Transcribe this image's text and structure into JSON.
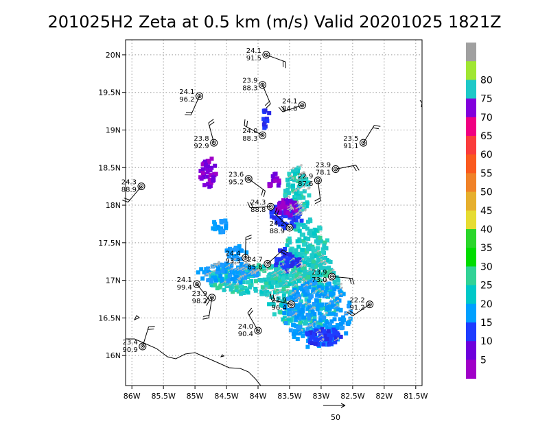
{
  "title": "201025H2 Zeta at 0.5 km (m/s) Valid 20201025 1821Z",
  "reference_vector_label": "50",
  "chart_data": {
    "type": "heatmap",
    "title": "201025H2 Zeta at 0.5 km (m/s) Valid 20201025 1821Z",
    "xlim": [
      -86.1,
      -81.4
    ],
    "ylim": [
      15.6,
      20.2
    ],
    "grid": true,
    "x_ticks": [
      {
        "v": -86.0,
        "label": "86W"
      },
      {
        "v": -85.5,
        "label": "85.5W"
      },
      {
        "v": -85.0,
        "label": "85W"
      },
      {
        "v": -84.5,
        "label": "84.5W"
      },
      {
        "v": -84.0,
        "label": "84W"
      },
      {
        "v": -83.5,
        "label": "83.5W"
      },
      {
        "v": -83.0,
        "label": "83W"
      },
      {
        "v": -82.5,
        "label": "82.5W"
      },
      {
        "v": -82.0,
        "label": "82W"
      },
      {
        "v": -81.5,
        "label": "81.5W"
      }
    ],
    "y_ticks": [
      {
        "v": 16.0,
        "label": "16N"
      },
      {
        "v": 16.5,
        "label": "16.5N"
      },
      {
        "v": 17.0,
        "label": "17N"
      },
      {
        "v": 17.5,
        "label": "17.5N"
      },
      {
        "v": 18.0,
        "label": "18N"
      },
      {
        "v": 18.5,
        "label": "18.5N"
      },
      {
        "v": 19.0,
        "label": "19N"
      },
      {
        "v": 19.5,
        "label": "19.5N"
      },
      {
        "v": 20.0,
        "label": "20N"
      }
    ],
    "colorbar": {
      "labels": [
        "5",
        "10",
        "15",
        "20",
        "25",
        "30",
        "35",
        "40",
        "45",
        "50",
        "55",
        "60",
        "65",
        "70",
        "75",
        "80"
      ],
      "colors": [
        "#a000c8",
        "#6e00dc",
        "#1e3cff",
        "#00a0ff",
        "#00c8c8",
        "#32d296",
        "#00dc00",
        "#2ad62a",
        "#e6dc32",
        "#e6af2d",
        "#f08228",
        "#fa5a1e",
        "#fa3c3c",
        "#f00082",
        "#8200dc",
        "#1ec8c8",
        "#a0e632",
        "#a0a0a0"
      ]
    },
    "observations": [
      {
        "lon": -83.87,
        "lat": 20.0,
        "t": "24.1",
        "p": "91.5"
      },
      {
        "lon": -83.93,
        "lat": 19.6,
        "t": "23.9",
        "p": "88.3"
      },
      {
        "lon": -84.93,
        "lat": 19.45,
        "t": "24.1",
        "p": "96.2"
      },
      {
        "lon": -83.3,
        "lat": 19.33,
        "t": "24.1",
        "p": "84.6"
      },
      {
        "lon": -83.93,
        "lat": 18.93,
        "t": "24.0",
        "p": "88.3"
      },
      {
        "lon": -84.7,
        "lat": 18.83,
        "t": "23.8",
        "p": "92.9"
      },
      {
        "lon": -82.33,
        "lat": 18.83,
        "t": "23.5",
        "p": "91.1"
      },
      {
        "lon": -82.77,
        "lat": 18.48,
        "t": "23.9",
        "p": "78.1"
      },
      {
        "lon": -84.15,
        "lat": 18.35,
        "t": "23.6",
        "p": "95.2"
      },
      {
        "lon": -83.05,
        "lat": 18.33,
        "t": "22.9",
        "p": "87.6"
      },
      {
        "lon": -85.85,
        "lat": 18.25,
        "t": "24.3",
        "p": "88.9"
      },
      {
        "lon": -83.8,
        "lat": 17.98,
        "t": "24.3",
        "p": "88.8"
      },
      {
        "lon": -83.5,
        "lat": 17.7,
        "t": "24.2",
        "p": "88.9"
      },
      {
        "lon": -84.2,
        "lat": 17.3,
        "t": "24.4",
        "p": "93.3"
      },
      {
        "lon": -83.85,
        "lat": 17.22,
        "t": "24.7",
        "p": "85.8"
      },
      {
        "lon": -82.83,
        "lat": 17.05,
        "t": "23.9",
        "p": "73.0"
      },
      {
        "lon": -84.97,
        "lat": 16.95,
        "t": "24.1",
        "p": "99.4"
      },
      {
        "lon": -84.73,
        "lat": 16.77,
        "t": "23.9",
        "p": "98.2"
      },
      {
        "lon": -82.23,
        "lat": 16.68,
        "t": "22.2",
        "p": "91.2"
      },
      {
        "lon": -83.47,
        "lat": 16.68,
        "t": "22.9",
        "p": "96.4"
      },
      {
        "lon": -84.0,
        "lat": 16.33,
        "t": "24.0",
        "p": "90.4"
      },
      {
        "lon": -85.83,
        "lat": 16.12,
        "t": "23.4",
        "p": "90.9"
      }
    ]
  }
}
